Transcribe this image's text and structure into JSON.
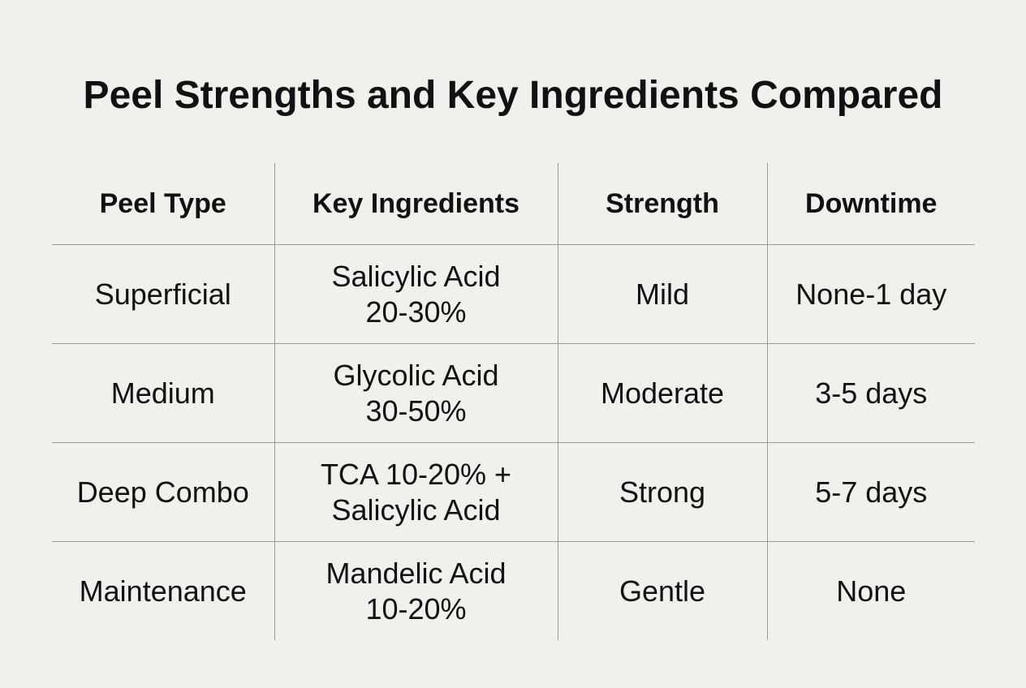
{
  "title": "Peel Strengths and Key Ingredients Compared",
  "table": {
    "headers": [
      "Peel Type",
      "Key Ingredients",
      "Strength",
      "Downtime"
    ],
    "rows": [
      {
        "peel_type": "Superficial",
        "ingredients": [
          "Salicylic Acid",
          "20-30%"
        ],
        "strength": "Mild",
        "downtime": "None-1 day"
      },
      {
        "peel_type": "Medium",
        "ingredients": [
          "Glycolic Acid",
          "30-50%"
        ],
        "strength": "Moderate",
        "downtime": "3-5 days"
      },
      {
        "peel_type": "Deep Combo",
        "ingredients": [
          "TCA 10-20% +",
          "Salicylic Acid"
        ],
        "strength": "Strong",
        "downtime": "5-7 days"
      },
      {
        "peel_type": "Maintenance",
        "ingredients": [
          "Mandelic Acid",
          "10-20%"
        ],
        "strength": "Gentle",
        "downtime": "None"
      }
    ]
  },
  "colors": {
    "background": "#f1f0ec",
    "text": "#111111",
    "grid_lines": "#9a9a96"
  }
}
